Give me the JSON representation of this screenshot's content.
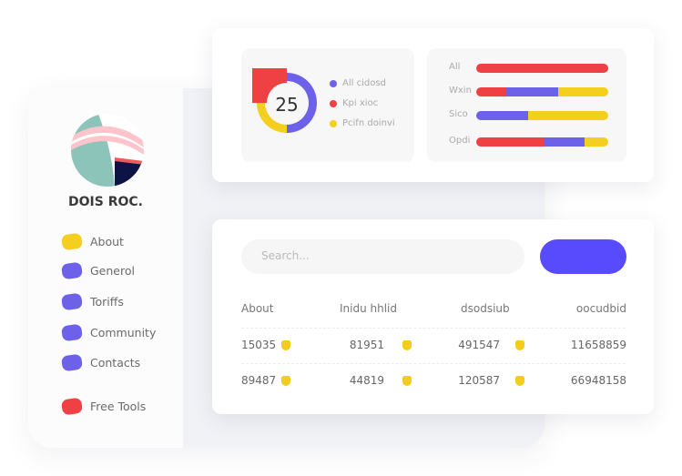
{
  "brand": "DOIS ROC.",
  "sidebar": {
    "items": [
      {
        "label": "About",
        "color": "#f4cf1f"
      },
      {
        "label": "Generol",
        "color": "#6c61e8"
      },
      {
        "label": "Toriffs",
        "color": "#6c61e8"
      },
      {
        "label": "Community",
        "color": "#6c61e8"
      },
      {
        "label": "Contacts",
        "color": "#6c61e8"
      },
      {
        "label": "Free Tools",
        "color": "#ef4044"
      }
    ]
  },
  "donut": {
    "value": "25",
    "segments": [
      {
        "label": "All cidosd",
        "percent": 50,
        "color": "#6c61e8"
      },
      {
        "label": "Kpi xioc",
        "percent": 25,
        "color": "#ef4044"
      },
      {
        "label": "Pcifn doinvi",
        "percent": 25,
        "color": "#f4cf1f"
      }
    ]
  },
  "bars": [
    {
      "label": "All",
      "segments": [
        {
          "percent": 100,
          "color": "#ef4044"
        }
      ]
    },
    {
      "label": "Wxin",
      "segments": [
        {
          "percent": 23,
          "color": "#ef4044"
        },
        {
          "percent": 39,
          "color": "#6c61e8"
        },
        {
          "percent": 38,
          "color": "#f4cf1f"
        }
      ]
    },
    {
      "label": "Sico",
      "segments": [
        {
          "percent": 39,
          "color": "#6c61e8"
        },
        {
          "percent": 61,
          "color": "#f4cf1f"
        }
      ]
    },
    {
      "label": "Opdi",
      "segments": [
        {
          "percent": 52,
          "color": "#ef4044"
        },
        {
          "percent": 30,
          "color": "#6c61e8"
        },
        {
          "percent": 18,
          "color": "#f4cf1f"
        }
      ]
    }
  ],
  "search": {
    "placeholder": "Search..."
  },
  "table": {
    "headers": [
      "About",
      "Inidu hhlid",
      "dsodsiub",
      "oocudbid"
    ],
    "rows": [
      [
        "15035",
        "81951",
        "491547",
        "11658859"
      ],
      [
        "89487",
        "44819",
        "120587",
        "66948158"
      ]
    ]
  }
}
